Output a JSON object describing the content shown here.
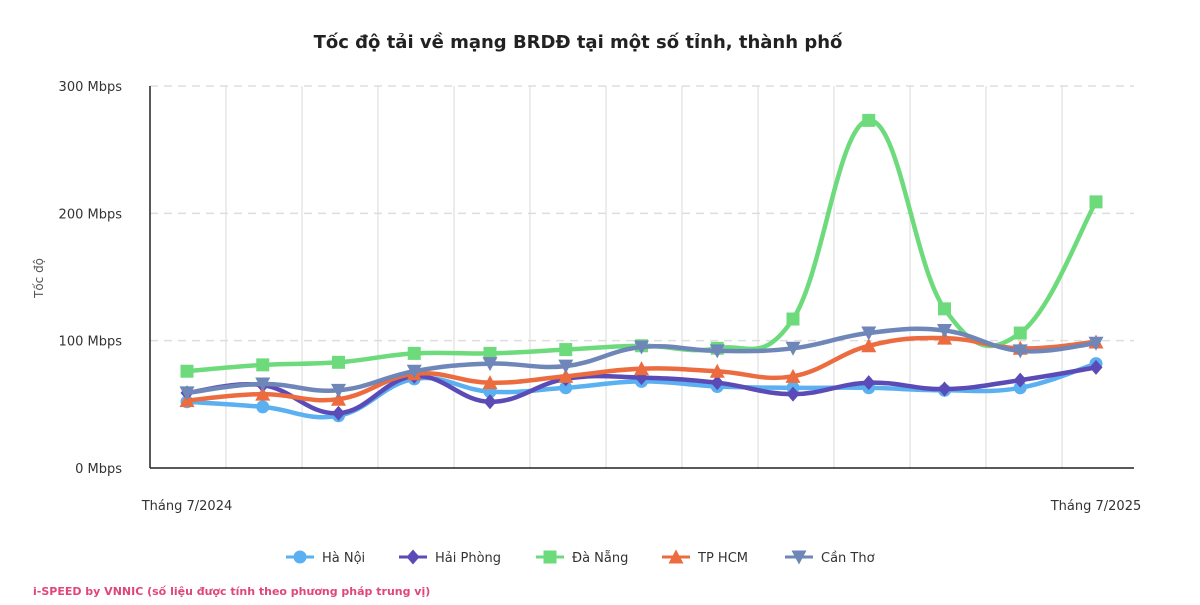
{
  "chart_data": {
    "type": "line",
    "title": "Tốc độ tải về mạng BRDĐ tại một số tỉnh, thành phố",
    "ylabel": "Tốc độ",
    "xlabel": "",
    "ylim": [
      0,
      300
    ],
    "yticks": [
      {
        "value": 0,
        "label": "0 Mbps"
      },
      {
        "value": 100,
        "label": "100 Mbps"
      },
      {
        "value": 200,
        "label": "200 Mbps"
      },
      {
        "value": 300,
        "label": "300 Mbps"
      }
    ],
    "x": [
      "2024-07",
      "2024-08",
      "2024-09",
      "2024-10",
      "2024-11",
      "2024-12",
      "2025-01",
      "2025-02",
      "2025-03",
      "2025-04",
      "2025-05",
      "2025-06",
      "2025-07"
    ],
    "xtick_labels": [
      {
        "index": 0,
        "label": "Tháng 7/2024"
      },
      {
        "index": 12,
        "label": "Tháng 7/2025"
      }
    ],
    "grid": true,
    "legend_position": "bottom",
    "series": [
      {
        "name": "Hà Nội",
        "color": "#5ab0f0",
        "marker": "circle",
        "values": [
          52,
          48,
          41,
          70,
          60,
          63,
          68,
          64,
          63,
          63,
          61,
          63,
          82
        ]
      },
      {
        "name": "Hải Phòng",
        "color": "#5b4bb7",
        "marker": "diamond",
        "values": [
          59,
          65,
          43,
          72,
          52,
          70,
          71,
          67,
          58,
          67,
          62,
          69,
          79
        ]
      },
      {
        "name": "Đà Nẵng",
        "color": "#6ddb7c",
        "marker": "square",
        "values": [
          76,
          81,
          83,
          90,
          90,
          93,
          96,
          94,
          117,
          273,
          125,
          106,
          209
        ]
      },
      {
        "name": "TP HCM",
        "color": "#ec6b3f",
        "marker": "triangle-up",
        "values": [
          53,
          58,
          54,
          74,
          67,
          72,
          78,
          76,
          72,
          96,
          102,
          94,
          99
        ]
      },
      {
        "name": "Cần Thơ",
        "color": "#6e86b8",
        "marker": "triangle-down",
        "values": [
          59,
          66,
          61,
          76,
          82,
          80,
          95,
          92,
          94,
          106,
          108,
          92,
          98
        ]
      }
    ]
  },
  "footnote": "i-SPEED by VNNIC (số liệu được tính theo phương pháp trung vị)"
}
